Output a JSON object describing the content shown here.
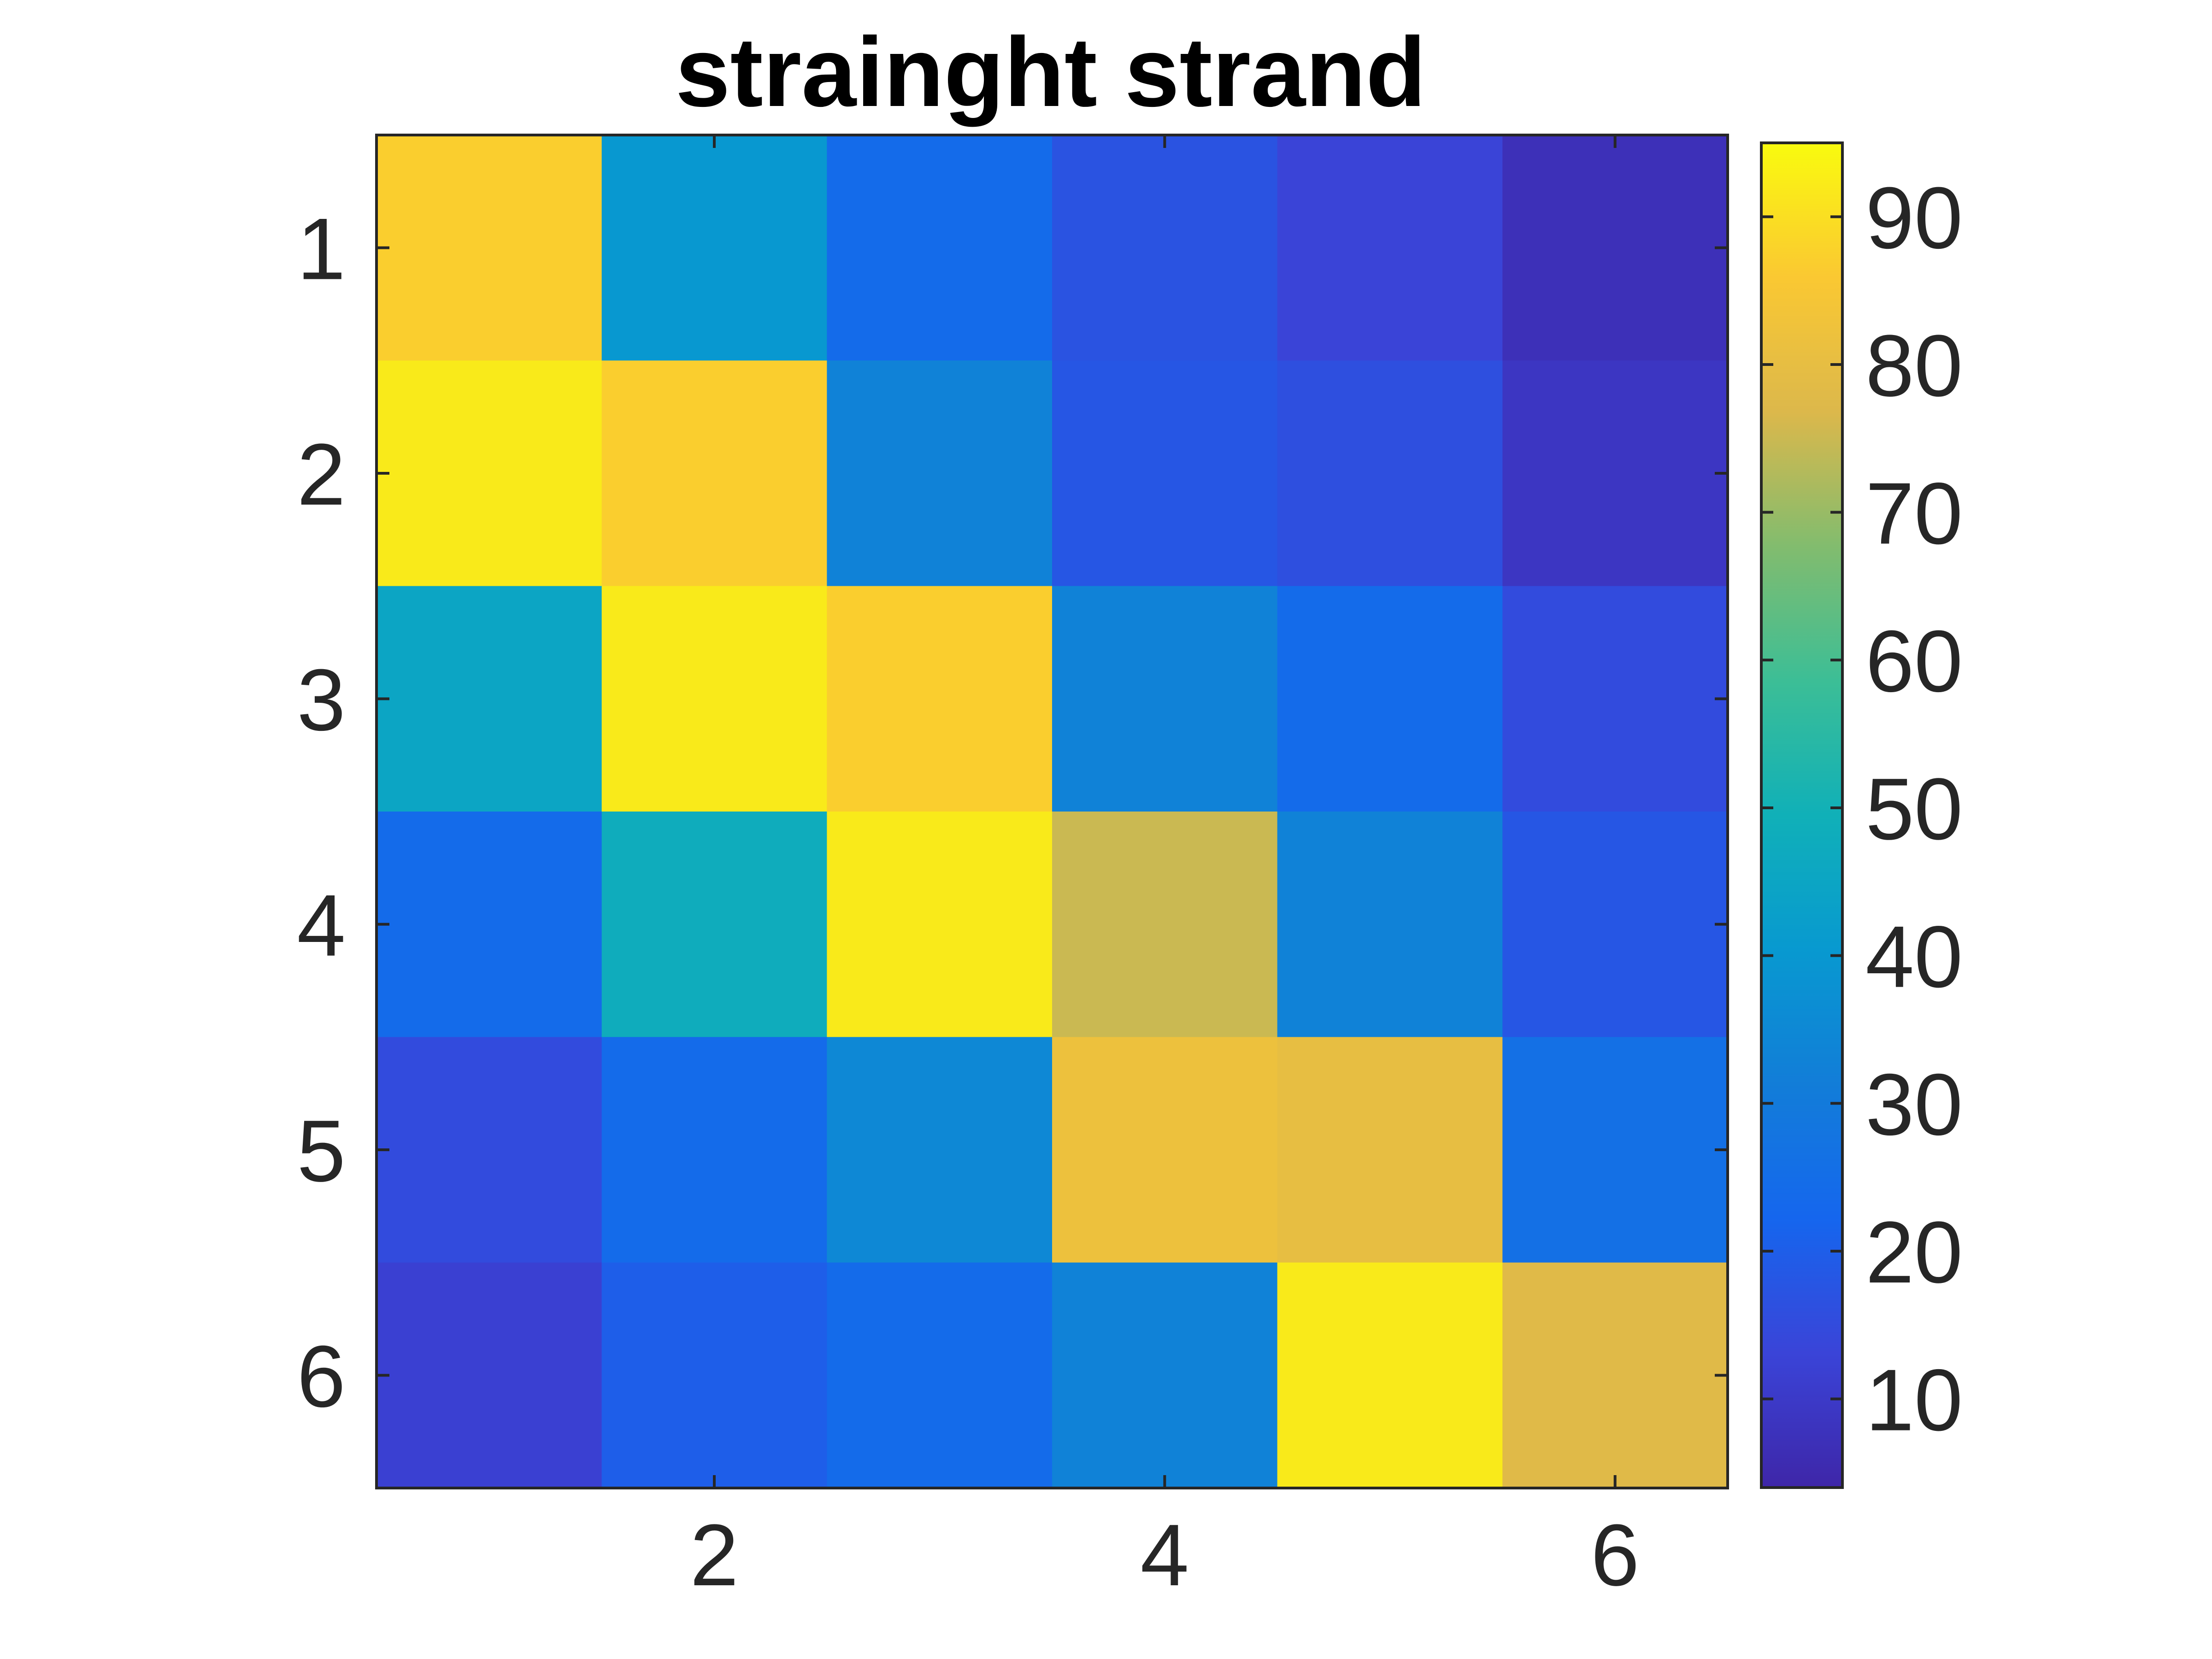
{
  "chart_data": {
    "type": "heatmap",
    "title": "strainght strand",
    "xlabel": "",
    "ylabel": "",
    "rows": [
      1,
      2,
      3,
      4,
      5,
      6
    ],
    "columns": [
      1,
      2,
      3,
      4,
      5,
      6
    ],
    "x_ticks": [
      2,
      4,
      6
    ],
    "y_ticks": [
      1,
      2,
      3,
      4,
      5,
      6
    ],
    "values": [
      [
        87,
        40,
        24,
        17,
        13,
        7
      ],
      [
        92,
        87,
        33,
        18,
        16,
        9
      ],
      [
        45,
        92,
        87,
        33,
        24,
        15
      ],
      [
        24,
        48,
        92,
        75,
        33,
        18
      ],
      [
        15,
        24,
        35,
        82,
        80,
        26
      ],
      [
        12,
        20,
        24,
        33,
        92,
        78
      ]
    ],
    "colorbar": {
      "range": [
        4,
        95
      ],
      "ticks": [
        10,
        20,
        30,
        40,
        50,
        60,
        70,
        80,
        90
      ],
      "colormap": "parula"
    },
    "grid": false
  }
}
